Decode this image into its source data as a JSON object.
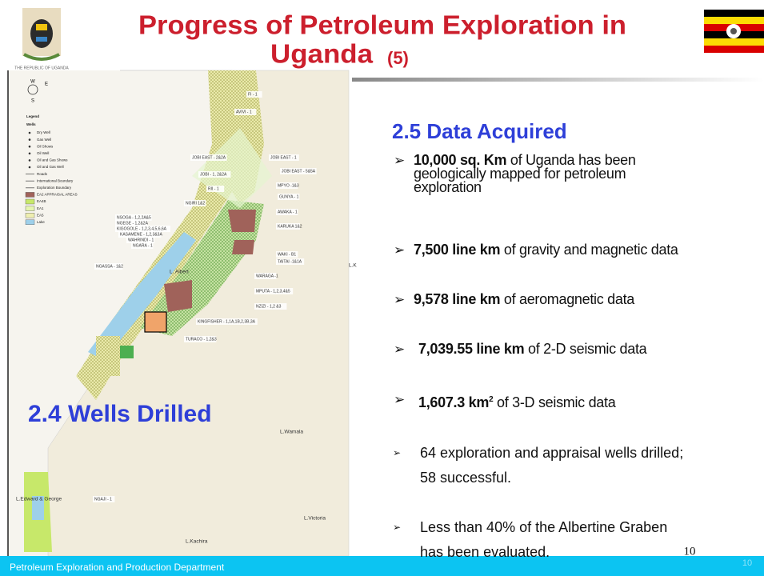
{
  "header": {
    "title_line1": "Progress of Petroleum Exploration in",
    "title_line2": "Uganda",
    "title_number": "(5)",
    "emblem_caption": "THE REPUBLIC OF UGANDA"
  },
  "map": {
    "compass": [
      "W",
      "E",
      "S"
    ],
    "legend": {
      "title": "Legend",
      "subtitle": "Wells",
      "items": [
        "Dry Well",
        "Gas Well",
        "Oil Shows",
        "Oil Well",
        "Oil and Gas Shows",
        "Oil and Gas Well",
        "Roads",
        "International Boundary",
        "Exploration Boundary",
        "EA2 APPRAISAL AREAS",
        "EA4B",
        "EA1",
        "EA5",
        "Lake"
      ]
    },
    "labels": [
      "FI - 1",
      "AVIVI - 1",
      "JOBI EAST - 2&2A",
      "JOBI EAST - 1",
      "JOBI - 1, 2&2A",
      "JOBI EAST - 5&5A",
      "RII - 1",
      "MPYO -1&3",
      "NGIRI 1&2",
      "GUNYA - 1",
      "AWAKA - 1",
      "NSOGA - 1,2,2A&5",
      "NGEGE - 1,2&2A",
      "KIGOGOLE - 1,2,3,4,5,6,6A",
      "KASAMENE - 1,2,3&3A",
      "WAHRINDI - 1",
      "NGARA - 1",
      "KARUKA 1&2",
      "WAKI - B1",
      "TAITAI -1&1A",
      "NGASSA - 1&2",
      "L. Albert",
      "WARAGA -1",
      "MPUTA - 1,2,3,4&5",
      "NZIZI - 1,2 &3",
      "KINGFISHER - 1,1A,1B,2,3B,3A",
      "TURACO - 1,2&3",
      "L.Wamala",
      "L.Edward & George",
      "NGAJI - 1",
      "L.Victoria",
      "L.Kachira",
      "L.K"
    ]
  },
  "left_heading": "2.4 Wells Drilled",
  "right": {
    "heading": "2.5  Data Acquired",
    "bullets": [
      {
        "bold": "10,000 sq. Km",
        "lines": [
          " of Uganda has been",
          "geologically mapped for petroleum",
          "exploration"
        ]
      },
      {
        "bold": "7,500 line km",
        "text": " of gravity and magnetic data"
      },
      {
        "bold": "9,578 line km",
        "text": " of aeromagnetic data"
      },
      {
        "bold": "7,039.55 line km",
        "text": " of 2-D seismic data"
      },
      {
        "bold": "1,607.3 km",
        "sup": "2",
        "text": " of 3-D seismic data"
      },
      {
        "lines": [
          "64 exploration and appraisal wells drilled;",
          "58 successful."
        ]
      },
      {
        "lines": [
          "Less than 40% of the Albertine Graben",
          "has been evaluated."
        ]
      }
    ]
  },
  "footer": {
    "department": "Petroleum Exploration and Production Department",
    "page_number": "10",
    "slide_number": "10"
  }
}
